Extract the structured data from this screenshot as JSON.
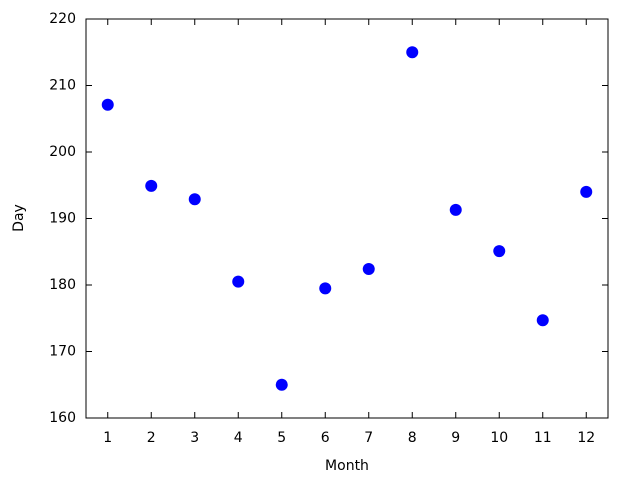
{
  "chart_data": {
    "type": "scatter",
    "x_label": "Month",
    "y_label": "Day",
    "x": [
      1,
      2,
      3,
      4,
      5,
      6,
      7,
      8,
      9,
      10,
      11,
      12
    ],
    "series": [
      {
        "color": "#0000ff",
        "values": [
          207.1,
          194.9,
          192.9,
          180.5,
          165,
          179.5,
          182.4,
          215,
          191.3,
          185.1,
          174.7,
          194
        ]
      }
    ],
    "xlim": [
      0.5,
      12.5
    ],
    "xticks": [
      1,
      2,
      3,
      4,
      5,
      6,
      7,
      8,
      9,
      10,
      11,
      12
    ],
    "ylim": [
      160,
      220
    ],
    "yticks": [
      160,
      170,
      180,
      190,
      200,
      210,
      220
    ]
  }
}
